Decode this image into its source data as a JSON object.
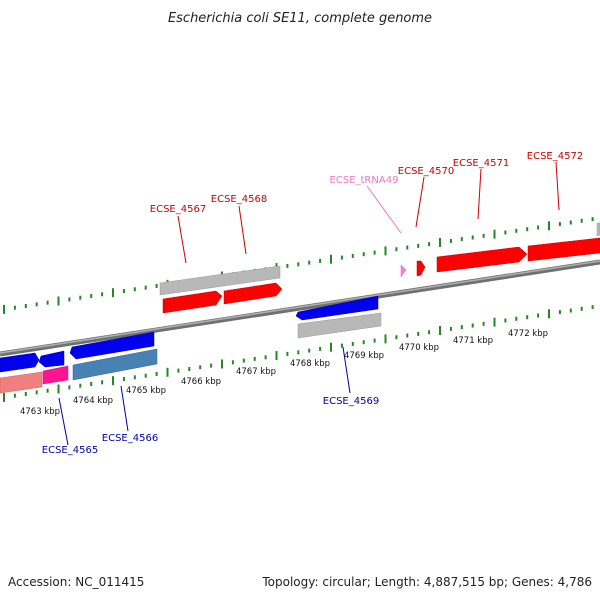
{
  "title": "Escherichia coli SE11, complete genome",
  "footer": {
    "accession": "Accession: NC_011415",
    "summary": "Topology: circular; Length: 4,887,515 bp; Genes: 4,786"
  },
  "colors": {
    "cds_forward": "#ff0000",
    "cds_reverse": "#0000ee",
    "trna": "#ee88cc",
    "label_forward": "#cc0000",
    "label_reverse": "#0000aa",
    "label_trna": "#ee77bb",
    "backbone": "#808080",
    "ruler_ticks": "#228822",
    "gene_gray": "#b8b8b8",
    "pink_feature": "#f08080",
    "magenta_feature": "#ff1493",
    "steelblue_feature": "#4682b4"
  },
  "kbp_ticks": [
    {
      "label": "4763 kbp"
    },
    {
      "label": "4764 kbp"
    },
    {
      "label": "4765 kbp"
    },
    {
      "label": "4766 kbp"
    },
    {
      "label": "4767 kbp"
    },
    {
      "label": "4768 kbp"
    },
    {
      "label": "4769 kbp"
    },
    {
      "label": "4770 kbp"
    },
    {
      "label": "4771 kbp"
    },
    {
      "label": "4772 kbp"
    }
  ],
  "genes": [
    {
      "name": "ECSE_4565",
      "strand": "reverse"
    },
    {
      "name": "ECSE_4566",
      "strand": "reverse"
    },
    {
      "name": "ECSE_4567",
      "strand": "forward"
    },
    {
      "name": "ECSE_4568",
      "strand": "forward"
    },
    {
      "name": "ECSE_4569",
      "strand": "reverse"
    },
    {
      "name": "ECSE_tRNA49",
      "strand": "forward"
    },
    {
      "name": "ECSE_4570",
      "strand": "forward"
    },
    {
      "name": "ECSE_4571",
      "strand": "forward"
    },
    {
      "name": "ECSE_4572",
      "strand": "forward"
    }
  ]
}
